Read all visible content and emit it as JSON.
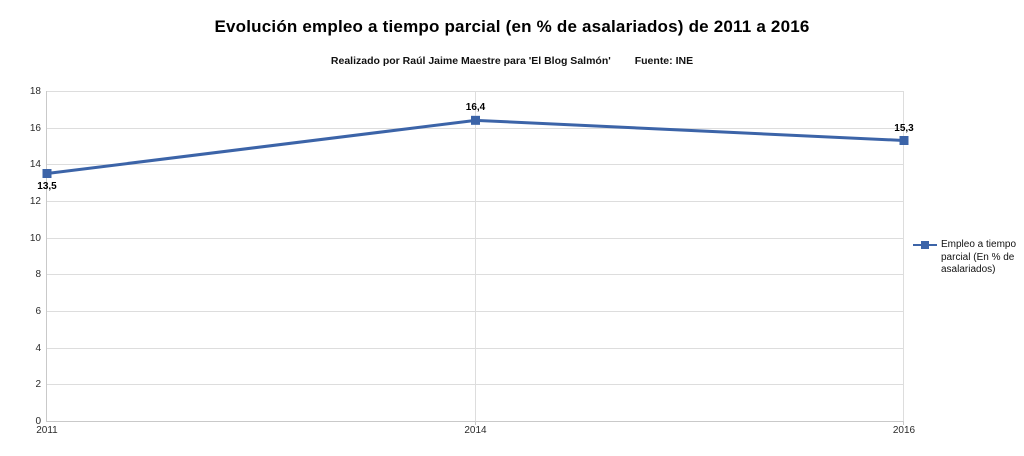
{
  "header": {
    "title": "Evolución empleo a tiempo parcial (en % de asalariados) de 2011 a 2016",
    "subtitle_left": "Realizado por Raúl Jaime Maestre para 'El Blog Salmón'",
    "subtitle_right": "Fuente: INE"
  },
  "chart_data": {
    "type": "line",
    "title": "Evolución empleo a tiempo parcial (en % de asalariados) de 2011 a 2016",
    "categories": [
      "2011",
      "2014",
      "2016"
    ],
    "series": [
      {
        "name": "Empleo a tiempo parcial (En % de asalariados)",
        "values": [
          13.5,
          16.4,
          15.3
        ],
        "point_labels": [
          "13,5",
          "16,4",
          "15,3"
        ],
        "point_label_positions": [
          "below",
          "above",
          "above"
        ],
        "color": "#3c64a8"
      }
    ],
    "xlabel": "",
    "ylabel": "",
    "ylim": [
      0,
      18
    ],
    "ytick_step": 2,
    "grid": true,
    "legend_position": "right"
  },
  "colors": {
    "line": "#3c64a8",
    "gridline": "#dddddd",
    "axis": "#c9c9c9",
    "tick_text": "#2b2b2b"
  }
}
